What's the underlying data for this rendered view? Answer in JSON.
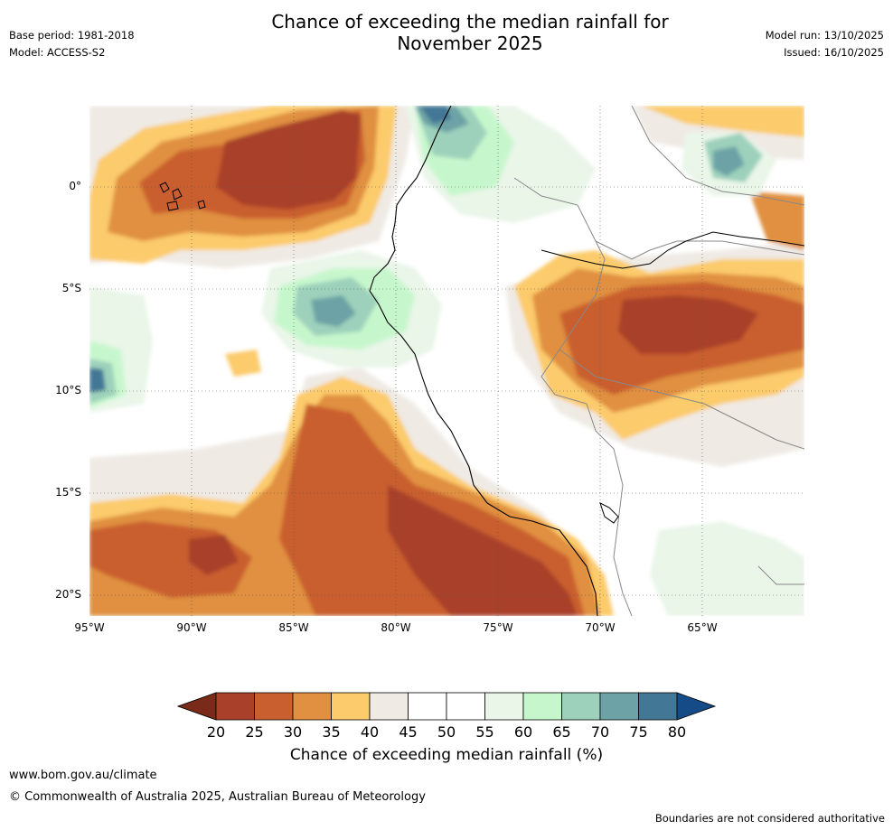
{
  "header": {
    "title_line1": "Chance of exceeding the median rainfall for",
    "title_line2": "November 2025",
    "base_period": "Base period: 1981-2018",
    "model": "Model: ACCESS-S2",
    "model_run": "Model run: 13/10/2025",
    "issued": "Issued: 16/10/2025"
  },
  "map": {
    "x_ticks": [
      "95°W",
      "90°W",
      "85°W",
      "80°W",
      "75°W",
      "70°W",
      "65°W"
    ],
    "y_ticks": [
      "0°",
      "5°S",
      "10°S",
      "15°S",
      "20°S"
    ],
    "lon_range": [
      -95,
      -60
    ],
    "lat_range": [
      -21,
      4
    ],
    "bins": [
      {
        "label": "<20",
        "color": "#7a2a18"
      },
      {
        "label": "20-25",
        "color": "#a9412a"
      },
      {
        "label": "25-30",
        "color": "#c95f2e"
      },
      {
        "label": "30-35",
        "color": "#e09040"
      },
      {
        "label": "35-40",
        "color": "#fccb6c"
      },
      {
        "label": "40-45",
        "color": "#efeae4"
      },
      {
        "label": "45-50",
        "color": "#ffffff"
      },
      {
        "label": "50-55",
        "color": "#ffffff"
      },
      {
        "label": "55-60",
        "color": "#e9f6e8"
      },
      {
        "label": "60-65",
        "color": "#c6f7cc"
      },
      {
        "label": "65-70",
        "color": "#9dd1bb"
      },
      {
        "label": "70-75",
        "color": "#6da3a6"
      },
      {
        "label": "75-80",
        "color": "#427896"
      },
      {
        "label": ">80",
        "color": "#154b86"
      }
    ]
  },
  "colorbar": {
    "ticks": [
      "20",
      "25",
      "30",
      "35",
      "40",
      "45",
      "50",
      "55",
      "60",
      "65",
      "70",
      "75",
      "80"
    ],
    "label": "Chance of exceeding median rainfall (%)"
  },
  "footer": {
    "url": "www.bom.gov.au/climate",
    "copyright": "© Commonwealth of Australia 2025, Australian Bureau of Meteorology",
    "disclaimer": "Boundaries are not considered authoritative"
  }
}
